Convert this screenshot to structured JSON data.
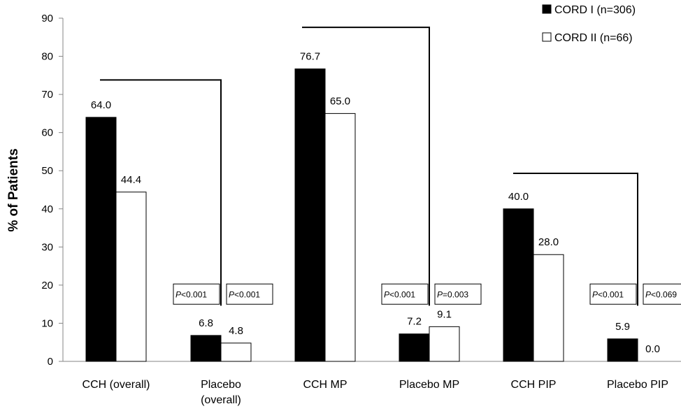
{
  "chart_data": {
    "type": "bar",
    "title": "",
    "xlabel": "",
    "ylabel": "% of Patients",
    "ylim": [
      0,
      90
    ],
    "yticks": [
      0,
      10,
      20,
      30,
      40,
      50,
      60,
      70,
      80,
      90
    ],
    "grid": false,
    "legend_position": "top-right",
    "categories": [
      "CCH (overall)",
      "Placebo (overall)",
      "CCH MP",
      "Placebo MP",
      "CCH PIP",
      "Placebo PIP"
    ],
    "series": [
      {
        "name": "CORD I (n=306)",
        "color": "#000000",
        "values": [
          64.0,
          6.8,
          76.7,
          7.2,
          40.0,
          5.9
        ],
        "labels": [
          "64.0",
          "6.8",
          "76.7",
          "7.2",
          "40.0",
          "5.9"
        ]
      },
      {
        "name": "CORD II (n=66)",
        "color": "#ffffff",
        "values": [
          44.4,
          4.8,
          65.0,
          9.1,
          28.0,
          0.0
        ],
        "labels": [
          "44.4",
          "4.8",
          "65.0",
          "9.1",
          "28.0",
          "0.0"
        ]
      }
    ],
    "annotations": [
      {
        "pair": [
          0,
          1
        ],
        "p_values": [
          {
            "prefix": "P",
            "text": "<0.001"
          },
          {
            "prefix": "P",
            "text": "<0.001"
          }
        ]
      },
      {
        "pair": [
          2,
          3
        ],
        "p_values": [
          {
            "prefix": "P",
            "text": "<0.001"
          },
          {
            "prefix": "P",
            "text": "=0.003"
          }
        ]
      },
      {
        "pair": [
          4,
          5
        ],
        "p_values": [
          {
            "prefix": "P",
            "text": "<0.001"
          },
          {
            "prefix": "P",
            "text": "<0.069"
          }
        ]
      }
    ]
  }
}
